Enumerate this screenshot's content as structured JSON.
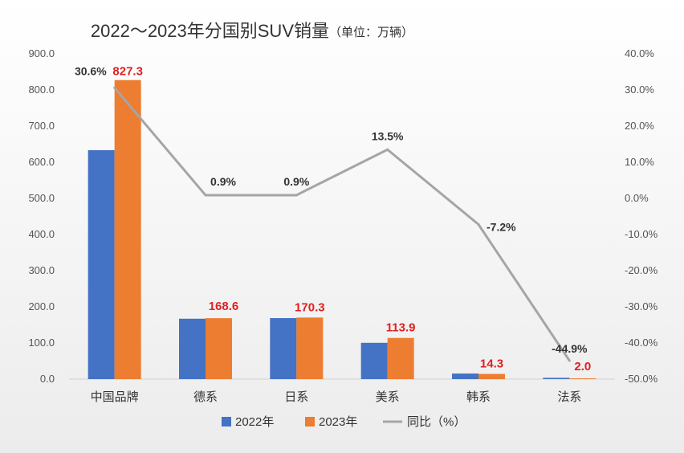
{
  "chart_data": {
    "type": "bar",
    "title": "2022～2023年分国别SUV销量",
    "subtitle": "（单位：万辆）",
    "categories": [
      "中国品牌",
      "德系",
      "日系",
      "美系",
      "韩系",
      "法系"
    ],
    "series": [
      {
        "name": "2022年",
        "type": "bar",
        "axis": "left",
        "color": "#4472c4",
        "values": [
          633.5,
          167.1,
          168.8,
          100.4,
          15.4,
          3.6
        ]
      },
      {
        "name": "2023年",
        "type": "bar",
        "axis": "left",
        "color": "#ed7d31",
        "values": [
          827.3,
          168.6,
          170.3,
          113.9,
          14.3,
          2.0
        ],
        "labels": [
          "827.3",
          "168.6",
          "170.3",
          "113.9",
          "14.3",
          "2.0"
        ]
      },
      {
        "name": "同比（%）",
        "type": "line",
        "axis": "right",
        "color": "#a5a5a5",
        "values": [
          30.6,
          0.9,
          0.9,
          13.5,
          -7.2,
          -44.9
        ],
        "labels": [
          "30.6%",
          "0.9%",
          "0.9%",
          "13.5%",
          "-7.2%",
          "-44.9%"
        ]
      }
    ],
    "y_left": {
      "min": 0,
      "max": 900,
      "step": 100,
      "tick_labels": [
        "0.0",
        "100.0",
        "200.0",
        "300.0",
        "400.0",
        "500.0",
        "600.0",
        "700.0",
        "800.0",
        "900.0"
      ]
    },
    "y_right": {
      "min": -50,
      "max": 40,
      "step": 10,
      "tick_labels": [
        "-50.0%",
        "-40.0%",
        "-30.0%",
        "-20.0%",
        "-10.0%",
        "0.0%",
        "10.0%",
        "20.0%",
        "30.0%",
        "40.0%"
      ]
    },
    "grid": false,
    "legend_position": "bottom"
  }
}
